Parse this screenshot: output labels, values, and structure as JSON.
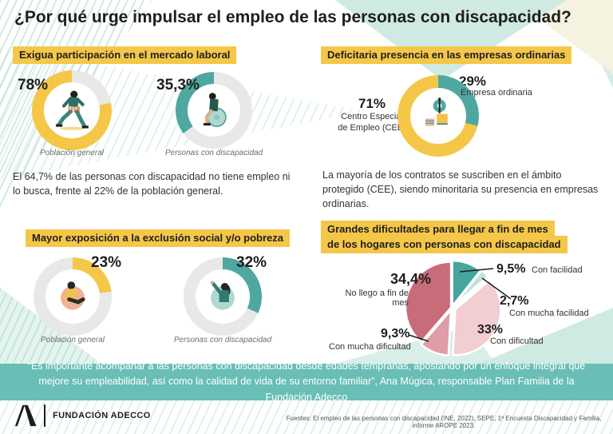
{
  "title": "¿Por qué urge impulsar el empleo de las personas con discapacidad?",
  "colors": {
    "yellow": "#F5C749",
    "teal": "#4FA8A0",
    "ring": "#E8E8E6",
    "banner": "#69BEB6",
    "pie_teal": "#46A69E",
    "pie_mint": "#BFE2DD",
    "pie_light_pink": "#F2CDD2",
    "pie_medium_pink": "#DE9DA7",
    "pie_dark_rose": "#C76D79"
  },
  "sections": {
    "labor": {
      "heading": "Exigua participación en el mercado laboral",
      "donut_general": {
        "value_label": "78%",
        "pct": 78,
        "dir": "ccw",
        "color": "#F5C749",
        "caption": "Población general"
      },
      "donut_disability": {
        "value_label": "35,3%",
        "pct": 35.3,
        "dir": "ccw",
        "color": "#4FA8A0",
        "caption": "Personas con discapacidad"
      },
      "note": "El 64,7% de las personas con discapacidad no tiene empleo ni lo busca,  frente al 22% de la población general."
    },
    "companies": {
      "heading": "Deficitaria presencia en las empresas ordinarias",
      "donut": {
        "pct": 29,
        "dir": "cw",
        "color": "#4FA8A0",
        "base": "#F5C749"
      },
      "cee_value": "71%",
      "cee_line1": "Centro Especial",
      "cee_line2": "de Empleo (CEE)",
      "ordinary_value": "29%",
      "ordinary_label": "Empresa ordinaria",
      "note": "La mayoría de los contratos se suscriben en el ámbito protegido (CEE), siendo minoritaria su presencia en empresas ordinarias."
    },
    "exclusion": {
      "heading": "Mayor exposición a la exclusión social y/o pobreza",
      "donut_general": {
        "value_label": "23%",
        "pct": 23,
        "dir": "cw",
        "color": "#F5C749",
        "caption": "Población general"
      },
      "donut_disability": {
        "value_label": "32%",
        "pct": 32,
        "dir": "cw",
        "color": "#4FA8A0",
        "caption": "Personas con discapacidad"
      }
    },
    "household": {
      "heading_line1": "Grandes dificultades para llegar a fin de mes",
      "heading_line2": "de los hogares con personas con discapacidad",
      "labels": {
        "no_llego_value": "34,4%",
        "no_llego_label": "No llego a fin de mes",
        "facilidad_value": "9,5%",
        "facilidad_label": "Con facilidad",
        "mucha_facilidad_value": "2,7%",
        "mucha_facilidad_label": "Con mucha facilidad",
        "dificultad_value": "33%",
        "dificultad_label": "Con dificultad",
        "mucha_dificultad_value": "9,3%",
        "mucha_dificultad_label": "Con mucha dificultad"
      }
    }
  },
  "quote": "“Es importante acompañar a las personas con discapacidad desde edades tempranas, apostando por un enfoque integral que mejore su empleabilidad, así como la calidad de vida de su entorno familiar”, Ana Múgica, responsable Plan Familia de la Fundación Adecco",
  "footer": {
    "brand": "FUNDACIÓN ADECCO",
    "sources": "Fuentes: El empleo de las personas con discapacidad (INE, 2022), SEPE, 1ª Encuesta Discapacidad y Familia, informe AROPE 2023."
  },
  "chart_data": [
    {
      "type": "pie",
      "variant": "donut",
      "title": "Exigua participación en el mercado laboral",
      "series": [
        {
          "name": "Población general",
          "value": 78,
          "unit": "%",
          "color": "#F5C749"
        },
        {
          "name": "Personas con discapacidad",
          "value": 35.3,
          "unit": "%",
          "color": "#4FA8A0"
        }
      ],
      "note": "El 64,7% de las personas con discapacidad no tiene empleo ni lo busca, frente al 22% de la población general."
    },
    {
      "type": "pie",
      "variant": "donut",
      "title": "Deficitaria presencia en las empresas ordinarias",
      "slices": [
        {
          "label": "Centro Especial de Empleo (CEE)",
          "value": 71,
          "color": "#F5C749"
        },
        {
          "label": "Empresa ordinaria",
          "value": 29,
          "color": "#4FA8A0"
        }
      ]
    },
    {
      "type": "pie",
      "variant": "donut",
      "title": "Mayor exposición a la exclusión social y/o pobreza",
      "series": [
        {
          "name": "Población general",
          "value": 23,
          "unit": "%",
          "color": "#F5C749"
        },
        {
          "name": "Personas con discapacidad",
          "value": 32,
          "unit": "%",
          "color": "#4FA8A0"
        }
      ]
    },
    {
      "type": "pie",
      "title": "Grandes dificultades para llegar a fin de mes de los hogares con personas con discapacidad",
      "slices": [
        {
          "label": "Con facilidad",
          "value": 9.5,
          "color": "#46A69E"
        },
        {
          "label": "Con mucha facilidad",
          "value": 2.7,
          "color": "#BFE2DD"
        },
        {
          "label": "Con dificultad",
          "value": 33,
          "color": "#F2CDD2"
        },
        {
          "label": "Con mucha dificultad",
          "value": 9.3,
          "color": "#DE9DA7"
        },
        {
          "label": "No llego a fin de mes",
          "value": 34.4,
          "color": "#C76D79"
        }
      ]
    }
  ]
}
